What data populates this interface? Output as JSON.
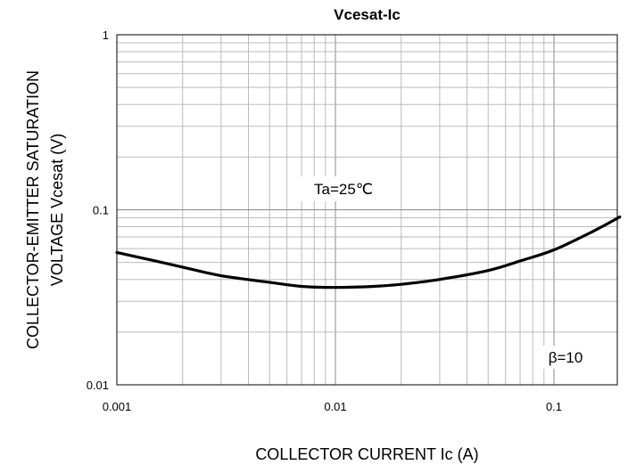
{
  "chart_data": {
    "type": "line",
    "title": "Vcesat-Ic",
    "xlabel": "COLLECTOR CURRENT  Ic (A)",
    "ylabel_lines": [
      "COLLECTOR-EMITTER SATURATION",
      "VOLTAGE   Vcesat (V)"
    ],
    "x_scale": "log",
    "y_scale": "log",
    "xlim": [
      0.001,
      0.2
    ],
    "ylim": [
      0.01,
      1
    ],
    "x_ticks": [
      0.001,
      0.01,
      0.1
    ],
    "x_tick_labels": [
      "0.001",
      "0.01",
      "0.1"
    ],
    "y_ticks": [
      0.01,
      0.1,
      1
    ],
    "y_tick_labels": [
      "0.01",
      "0.1",
      "1"
    ],
    "grid": true,
    "annotations": [
      "Ta=25℃",
      "β=10"
    ],
    "series": [
      {
        "color": "#000000",
        "x": [
          0.001,
          0.0015,
          0.002,
          0.003,
          0.005,
          0.007,
          0.01,
          0.015,
          0.02,
          0.03,
          0.05,
          0.07,
          0.1,
          0.15,
          0.2
        ],
        "y": [
          0.057,
          0.051,
          0.047,
          0.042,
          0.0385,
          0.0365,
          0.036,
          0.0365,
          0.0375,
          0.04,
          0.045,
          0.051,
          0.059,
          0.075,
          0.091
        ]
      }
    ]
  }
}
